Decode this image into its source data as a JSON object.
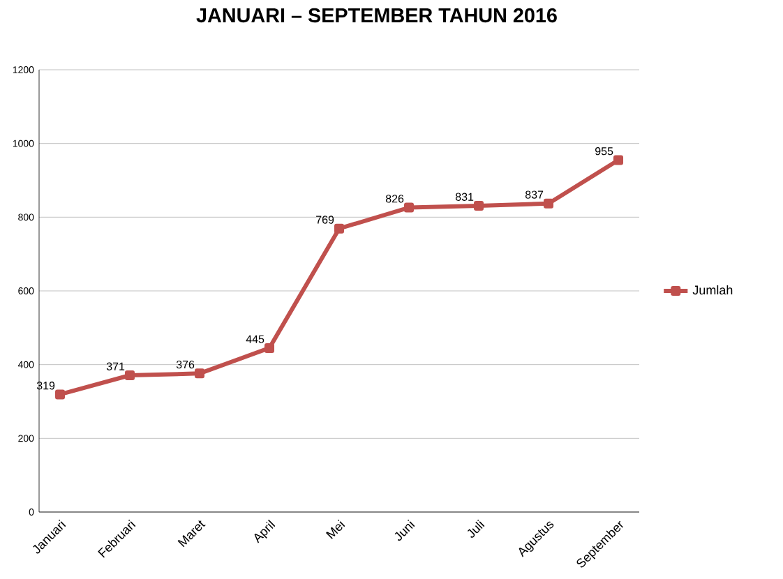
{
  "chart_data": {
    "type": "line",
    "title": "JANUARI – SEPTEMBER TAHUN 2016",
    "categories": [
      "Januari",
      "Februari",
      "Maret",
      "April",
      "Mei",
      "Juni",
      "Juli",
      "Agustus",
      "September"
    ],
    "series": [
      {
        "name": "Jumlah",
        "color": "#c0504d",
        "values": [
          319,
          371,
          376,
          445,
          769,
          826,
          831,
          837,
          955
        ]
      }
    ],
    "ylim": [
      0,
      1200
    ],
    "yticks": [
      0,
      200,
      400,
      600,
      800,
      1000,
      1200
    ],
    "grid": "y",
    "legend": "right",
    "marker": "square",
    "line_style": "solid",
    "data_labels": true
  }
}
